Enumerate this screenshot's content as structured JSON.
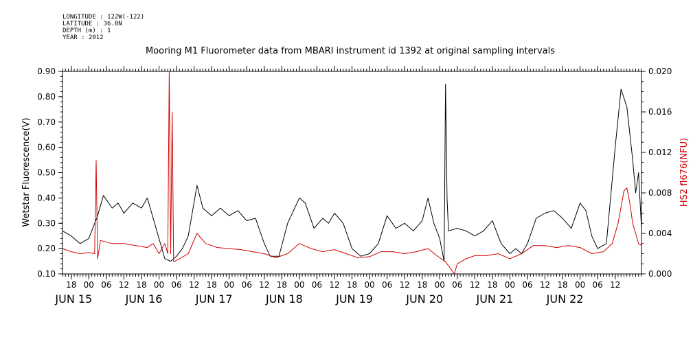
{
  "meta": {
    "longitude": "LONGITUDE : 122W(-122)",
    "latitude": "LATITUDE : 36.8N",
    "depth": "DEPTH (m) : 1",
    "year": "YEAR : 2012"
  },
  "colors": {
    "primary": "#000000",
    "secondary": "#d00000"
  },
  "chart_data": {
    "type": "line",
    "title": "Mooring M1 Fluorometer data from MBARI instrument id 1392 at original sampling intervals",
    "xlabel": "",
    "ylabel_left": "Wetstar Fluorescence(V)",
    "ylabel_right": "HS2 fl676(NFU)",
    "x_range": [
      "2012-06-14T15:00",
      "2012-06-22T21:00"
    ],
    "hour_ticks": [
      "18",
      "00",
      "06",
      "12",
      "18",
      "00",
      "06",
      "12",
      "18",
      "00",
      "06",
      "12",
      "18",
      "00",
      "06",
      "12",
      "18",
      "00",
      "06",
      "12",
      "18",
      "00",
      "06",
      "12",
      "18",
      "00",
      "06",
      "12",
      "18",
      "00",
      "06",
      "12"
    ],
    "date_labels": [
      "JUN 15",
      "JUN 16",
      "JUN 17",
      "JUN 18",
      "JUN 19",
      "JUN 20",
      "JUN 21",
      "JUN 22"
    ],
    "ylim_left": [
      0.1,
      0.9
    ],
    "yticks_left": [
      "0.10",
      "0.20",
      "0.30",
      "0.40",
      "0.50",
      "0.60",
      "0.70",
      "0.80",
      "0.90"
    ],
    "ylim_right": [
      0.0,
      0.02
    ],
    "yticks_right": [
      "0.000",
      "0.004",
      "0.008",
      "0.012",
      "0.016",
      "0.020"
    ],
    "grid": false,
    "series": [
      {
        "name": "Wetstar Fluorescence(V)",
        "axis": "left",
        "color": "#000000",
        "points": [
          [
            "2012-06-14T15:00",
            0.27
          ],
          [
            "2012-06-14T18:00",
            0.25
          ],
          [
            "2012-06-14T21:00",
            0.22
          ],
          [
            "2012-06-15T00:00",
            0.24
          ],
          [
            "2012-06-15T03:00",
            0.33
          ],
          [
            "2012-06-15T05:00",
            0.41
          ],
          [
            "2012-06-15T08:00",
            0.36
          ],
          [
            "2012-06-15T10:00",
            0.38
          ],
          [
            "2012-06-15T12:00",
            0.34
          ],
          [
            "2012-06-15T15:00",
            0.38
          ],
          [
            "2012-06-15T18:00",
            0.36
          ],
          [
            "2012-06-15T20:00",
            0.4
          ],
          [
            "2012-06-16T00:00",
            0.24
          ],
          [
            "2012-06-16T02:00",
            0.16
          ],
          [
            "2012-06-16T04:00",
            0.15
          ],
          [
            "2012-06-16T06:00",
            0.17
          ],
          [
            "2012-06-16T08:00",
            0.2
          ],
          [
            "2012-06-16T10:00",
            0.25
          ],
          [
            "2012-06-16T13:00",
            0.45
          ],
          [
            "2012-06-16T15:00",
            0.36
          ],
          [
            "2012-06-16T18:00",
            0.33
          ],
          [
            "2012-06-16T21:00",
            0.36
          ],
          [
            "2012-06-17T00:00",
            0.33
          ],
          [
            "2012-06-17T03:00",
            0.35
          ],
          [
            "2012-06-17T06:00",
            0.31
          ],
          [
            "2012-06-17T09:00",
            0.32
          ],
          [
            "2012-06-17T12:00",
            0.22
          ],
          [
            "2012-06-17T14:00",
            0.17
          ],
          [
            "2012-06-17T17:00",
            0.17
          ],
          [
            "2012-06-17T20:00",
            0.3
          ],
          [
            "2012-06-18T00:00",
            0.4
          ],
          [
            "2012-06-18T02:00",
            0.38
          ],
          [
            "2012-06-18T05:00",
            0.28
          ],
          [
            "2012-06-18T08:00",
            0.32
          ],
          [
            "2012-06-18T10:00",
            0.3
          ],
          [
            "2012-06-18T12:00",
            0.34
          ],
          [
            "2012-06-18T15:00",
            0.3
          ],
          [
            "2012-06-18T18:00",
            0.2
          ],
          [
            "2012-06-18T21:00",
            0.17
          ],
          [
            "2012-06-19T00:00",
            0.18
          ],
          [
            "2012-06-19T03:00",
            0.22
          ],
          [
            "2012-06-19T06:00",
            0.33
          ],
          [
            "2012-06-19T09:00",
            0.28
          ],
          [
            "2012-06-19T12:00",
            0.3
          ],
          [
            "2012-06-19T15:00",
            0.27
          ],
          [
            "2012-06-19T18:00",
            0.31
          ],
          [
            "2012-06-19T20:00",
            0.4
          ],
          [
            "2012-06-19T22:00",
            0.3
          ],
          [
            "2012-06-20T00:00",
            0.24
          ],
          [
            "2012-06-20T01:30",
            0.15
          ],
          [
            "2012-06-20T02:00",
            0.85
          ],
          [
            "2012-06-20T02:30",
            0.4
          ],
          [
            "2012-06-20T03:00",
            0.27
          ],
          [
            "2012-06-20T06:00",
            0.28
          ],
          [
            "2012-06-20T09:00",
            0.27
          ],
          [
            "2012-06-20T12:00",
            0.25
          ],
          [
            "2012-06-20T15:00",
            0.27
          ],
          [
            "2012-06-20T18:00",
            0.31
          ],
          [
            "2012-06-20T21:00",
            0.22
          ],
          [
            "2012-06-21T00:00",
            0.18
          ],
          [
            "2012-06-21T02:00",
            0.2
          ],
          [
            "2012-06-21T04:00",
            0.18
          ],
          [
            "2012-06-21T06:00",
            0.22
          ],
          [
            "2012-06-21T09:00",
            0.32
          ],
          [
            "2012-06-21T12:00",
            0.34
          ],
          [
            "2012-06-21T15:00",
            0.35
          ],
          [
            "2012-06-21T18:00",
            0.32
          ],
          [
            "2012-06-21T21:00",
            0.28
          ],
          [
            "2012-06-22T00:00",
            0.38
          ],
          [
            "2012-06-22T02:00",
            0.35
          ],
          [
            "2012-06-22T04:00",
            0.25
          ],
          [
            "2012-06-22T06:00",
            0.2
          ],
          [
            "2012-06-22T09:00",
            0.22
          ],
          [
            "2012-06-22T12:00",
            0.6
          ],
          [
            "2012-06-22T14:00",
            0.83
          ],
          [
            "2012-06-22T16:00",
            0.76
          ],
          [
            "2012-06-22T18:00",
            0.55
          ],
          [
            "2012-06-22T19:00",
            0.42
          ],
          [
            "2012-06-22T20:00",
            0.5
          ],
          [
            "2012-06-22T21:00",
            0.28
          ]
        ]
      },
      {
        "name": "HS2 fl676(NFU)",
        "axis": "right",
        "color": "#d00000",
        "points": [
          [
            "2012-06-14T15:00",
            0.0025
          ],
          [
            "2012-06-14T18:00",
            0.0022
          ],
          [
            "2012-06-14T21:00",
            0.002
          ],
          [
            "2012-06-15T00:00",
            0.0021
          ],
          [
            "2012-06-15T02:00",
            0.002
          ],
          [
            "2012-06-15T02:30",
            0.0112
          ],
          [
            "2012-06-15T03:00",
            0.0015
          ],
          [
            "2012-06-15T04:00",
            0.0033
          ],
          [
            "2012-06-15T08:00",
            0.003
          ],
          [
            "2012-06-15T12:00",
            0.003
          ],
          [
            "2012-06-15T16:00",
            0.0028
          ],
          [
            "2012-06-15T20:00",
            0.0026
          ],
          [
            "2012-06-15T22:00",
            0.003
          ],
          [
            "2012-06-16T00:00",
            0.002
          ],
          [
            "2012-06-16T02:00",
            0.003
          ],
          [
            "2012-06-16T03:00",
            0.002
          ],
          [
            "2012-06-16T03:30",
            0.02
          ],
          [
            "2012-06-16T04:00",
            0.002
          ],
          [
            "2012-06-16T04:30",
            0.016
          ],
          [
            "2012-06-16T05:00",
            0.0012
          ],
          [
            "2012-06-16T07:00",
            0.0015
          ],
          [
            "2012-06-16T10:00",
            0.002
          ],
          [
            "2012-06-16T13:00",
            0.004
          ],
          [
            "2012-06-16T16:00",
            0.003
          ],
          [
            "2012-06-16T20:00",
            0.0026
          ],
          [
            "2012-06-17T00:00",
            0.0025
          ],
          [
            "2012-06-17T04:00",
            0.0024
          ],
          [
            "2012-06-17T08:00",
            0.0022
          ],
          [
            "2012-06-17T12:00",
            0.002
          ],
          [
            "2012-06-17T16:00",
            0.0016
          ],
          [
            "2012-06-17T20:00",
            0.002
          ],
          [
            "2012-06-18T00:00",
            0.003
          ],
          [
            "2012-06-18T04:00",
            0.0025
          ],
          [
            "2012-06-18T08:00",
            0.0022
          ],
          [
            "2012-06-18T12:00",
            0.0024
          ],
          [
            "2012-06-18T16:00",
            0.002
          ],
          [
            "2012-06-18T20:00",
            0.0016
          ],
          [
            "2012-06-19T00:00",
            0.0017
          ],
          [
            "2012-06-19T04:00",
            0.0022
          ],
          [
            "2012-06-19T08:00",
            0.0022
          ],
          [
            "2012-06-19T12:00",
            0.002
          ],
          [
            "2012-06-19T16:00",
            0.0022
          ],
          [
            "2012-06-19T20:00",
            0.0025
          ],
          [
            "2012-06-19T23:00",
            0.0018
          ],
          [
            "2012-06-20T02:00",
            0.0012
          ],
          [
            "2012-06-20T03:00",
            0.0008
          ],
          [
            "2012-06-20T04:00",
            0.0004
          ],
          [
            "2012-06-20T05:00",
            0.0
          ],
          [
            "2012-06-20T06:00",
            0.001
          ],
          [
            "2012-06-20T09:00",
            0.0015
          ],
          [
            "2012-06-20T12:00",
            0.0018
          ],
          [
            "2012-06-20T16:00",
            0.0018
          ],
          [
            "2012-06-20T20:00",
            0.002
          ],
          [
            "2012-06-21T00:00",
            0.0015
          ],
          [
            "2012-06-21T04:00",
            0.002
          ],
          [
            "2012-06-21T08:00",
            0.0028
          ],
          [
            "2012-06-21T12:00",
            0.0028
          ],
          [
            "2012-06-21T16:00",
            0.0026
          ],
          [
            "2012-06-21T20:00",
            0.0028
          ],
          [
            "2012-06-22T00:00",
            0.0026
          ],
          [
            "2012-06-22T04:00",
            0.002
          ],
          [
            "2012-06-22T08:00",
            0.0022
          ],
          [
            "2012-06-22T11:00",
            0.003
          ],
          [
            "2012-06-22T13:00",
            0.005
          ],
          [
            "2012-06-22T15:00",
            0.0082
          ],
          [
            "2012-06-22T16:00",
            0.0085
          ],
          [
            "2012-06-22T17:00",
            0.007
          ],
          [
            "2012-06-22T18:00",
            0.005
          ],
          [
            "2012-06-22T19:00",
            0.004
          ],
          [
            "2012-06-22T20:00",
            0.003
          ],
          [
            "2012-06-22T21:00",
            0.0028
          ]
        ]
      }
    ]
  }
}
